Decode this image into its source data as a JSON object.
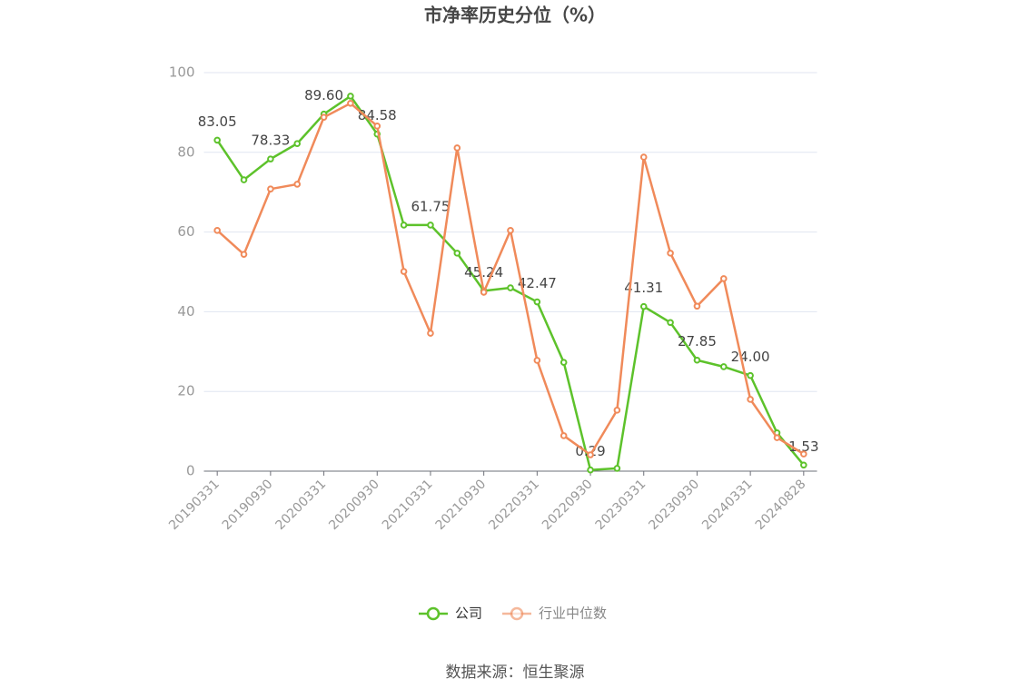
{
  "chart_data": {
    "type": "line",
    "title": "市净率历史分位（%）",
    "source": "数据来源：恒生聚源",
    "categories": [
      "20190331",
      null,
      "20190930",
      null,
      "20200331",
      null,
      "20200930",
      null,
      "20210331",
      null,
      "20210930",
      null,
      "20220331",
      null,
      "20220930",
      null,
      "20230331",
      null,
      "20230930",
      null,
      "20240331",
      null,
      "20240828"
    ],
    "ylim": [
      0,
      100
    ],
    "yticks": [
      0,
      20,
      40,
      60,
      80,
      100
    ],
    "grid": true,
    "legend": "bottom",
    "series": [
      {
        "name": "公司",
        "color": "#5dc22b",
        "values": [
          83.05,
          73.1,
          78.33,
          82.2,
          89.6,
          94.1,
          84.58,
          61.75,
          61.75,
          54.7,
          45.24,
          46.0,
          42.47,
          27.3,
          0.29,
          0.7,
          41.31,
          37.3,
          27.85,
          26.2,
          24.0,
          9.6,
          1.53
        ],
        "value_labels": [
          "83.05",
          null,
          "78.33",
          null,
          "89.60",
          null,
          "84.58",
          null,
          "61.75",
          null,
          "45.24",
          null,
          "42.47",
          null,
          "0.29",
          null,
          "41.31",
          null,
          "27.85",
          null,
          "24.00",
          null,
          "1.53"
        ]
      },
      {
        "name": "行业中位数",
        "color": "#f08a5a",
        "values": [
          60.4,
          54.4,
          70.8,
          72.0,
          88.8,
          92.3,
          86.6,
          50.1,
          34.6,
          81.1,
          44.9,
          60.4,
          27.8,
          8.9,
          4.1,
          15.3,
          78.8,
          54.7,
          41.4,
          48.3,
          18.0,
          8.4,
          4.3
        ]
      }
    ]
  }
}
